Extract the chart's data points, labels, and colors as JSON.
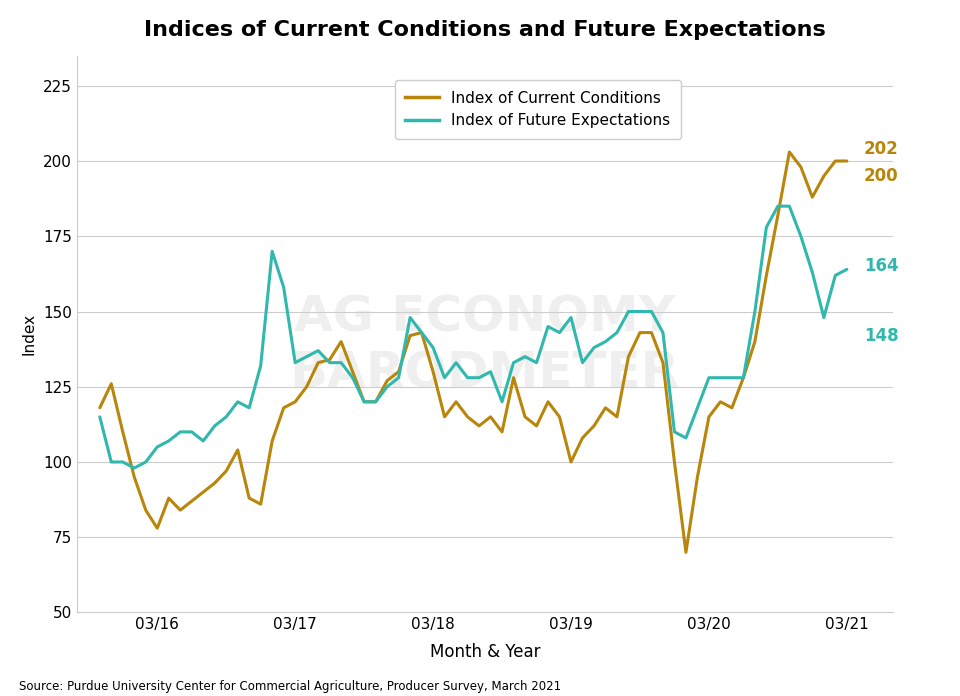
{
  "title": "Indices of Current Conditions and Future Expectations",
  "ylabel": "Index",
  "xlabel": "Month & Year",
  "source": "Source: Purdue University Center for Commercial Agriculture, Producer Survey, March 2021",
  "color_current": "#B8860B",
  "color_future": "#30B8AD",
  "ylim": [
    50,
    235
  ],
  "yticks": [
    50,
    75,
    100,
    125,
    150,
    175,
    200,
    225
  ],
  "legend_labels": [
    "Index of Current Conditions",
    "Index of Future Expectations"
  ],
  "xtick_labels": [
    "03/16",
    "03/17",
    "03/18",
    "03/19",
    "03/20",
    "03/21"
  ],
  "xtick_positions": [
    5,
    17,
    29,
    41,
    53,
    65
  ],
  "n_months": 66,
  "current_conditions": [
    118,
    126,
    110,
    95,
    84,
    78,
    88,
    84,
    87,
    90,
    93,
    97,
    104,
    88,
    86,
    107,
    118,
    120,
    125,
    133,
    134,
    140,
    130,
    120,
    120,
    127,
    130,
    142,
    143,
    130,
    115,
    120,
    115,
    112,
    115,
    110,
    128,
    115,
    112,
    120,
    115,
    100,
    108,
    112,
    118,
    115,
    135,
    143,
    143,
    133,
    100,
    70,
    95,
    115,
    120,
    118,
    128,
    140,
    162,
    182,
    203,
    198,
    188,
    195,
    200,
    200
  ],
  "future_expectations": [
    115,
    100,
    100,
    98,
    100,
    105,
    107,
    110,
    110,
    107,
    112,
    115,
    120,
    118,
    132,
    170,
    158,
    133,
    135,
    137,
    133,
    133,
    128,
    120,
    120,
    125,
    128,
    148,
    143,
    138,
    128,
    133,
    128,
    128,
    130,
    120,
    133,
    135,
    133,
    145,
    143,
    148,
    133,
    138,
    140,
    143,
    150,
    150,
    150,
    143,
    110,
    108,
    118,
    128,
    128,
    128,
    128,
    150,
    178,
    185,
    185,
    175,
    163,
    148,
    162,
    164
  ],
  "annotation_peak_cc_val": 202,
  "annotation_last_cc_val": 200,
  "annotation_last_fe_val": 164,
  "annotation_dip_fe_val": 148
}
